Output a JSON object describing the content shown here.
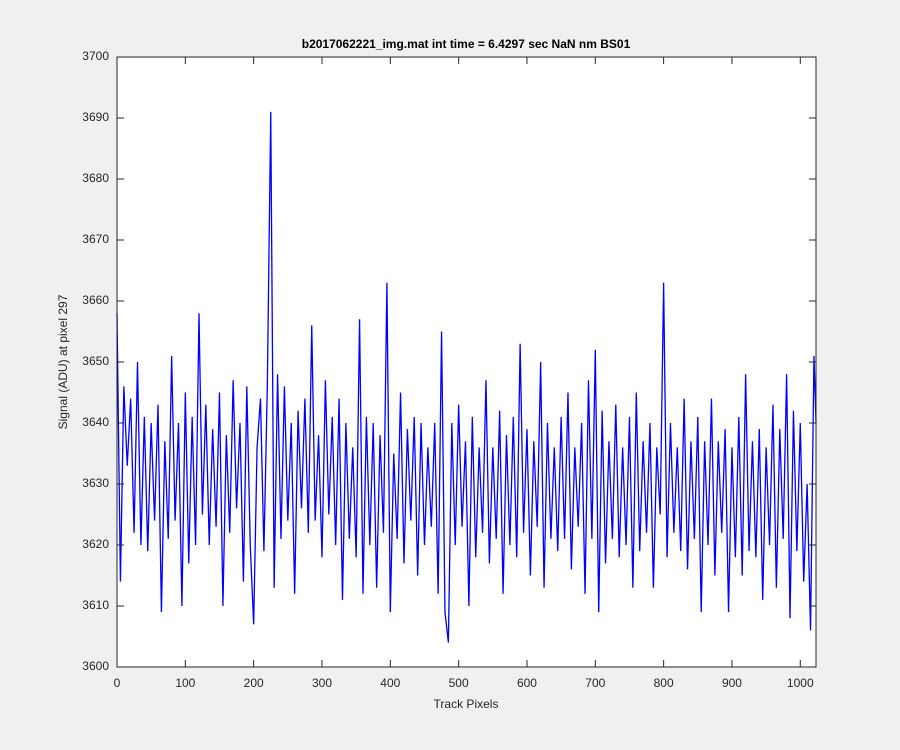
{
  "chart_data": {
    "type": "line",
    "title": "b2017062221_img.mat int time = 6.4297 sec  NaN nm BS01",
    "xlabel": "Track Pixels",
    "ylabel": "Signal (ADU) at pixel 297",
    "xlim": [
      0,
      1023
    ],
    "ylim": [
      3600,
      3700
    ],
    "xticks": [
      0,
      100,
      200,
      300,
      400,
      500,
      600,
      700,
      800,
      900,
      1000
    ],
    "yticks": [
      3600,
      3610,
      3620,
      3630,
      3640,
      3650,
      3660,
      3670,
      3680,
      3690,
      3700
    ],
    "grid": false,
    "series": [
      {
        "color": "#0000ff",
        "x": [
          0,
          5,
          10,
          15,
          20,
          25,
          30,
          35,
          40,
          45,
          50,
          55,
          60,
          65,
          70,
          75,
          80,
          85,
          90,
          95,
          100,
          105,
          110,
          115,
          120,
          125,
          130,
          135,
          140,
          145,
          150,
          155,
          160,
          165,
          170,
          175,
          180,
          185,
          190,
          195,
          200,
          205,
          210,
          215,
          220,
          225,
          230,
          235,
          240,
          245,
          250,
          255,
          260,
          265,
          270,
          275,
          280,
          285,
          290,
          295,
          300,
          305,
          310,
          315,
          320,
          325,
          330,
          335,
          340,
          345,
          350,
          355,
          360,
          365,
          370,
          375,
          380,
          385,
          390,
          395,
          400,
          405,
          410,
          415,
          420,
          425,
          430,
          435,
          440,
          445,
          450,
          455,
          460,
          465,
          470,
          475,
          480,
          485,
          490,
          495,
          500,
          505,
          510,
          515,
          520,
          525,
          530,
          535,
          540,
          545,
          550,
          555,
          560,
          565,
          570,
          575,
          580,
          585,
          590,
          595,
          600,
          605,
          610,
          615,
          620,
          625,
          630,
          635,
          640,
          645,
          650,
          655,
          660,
          665,
          670,
          675,
          680,
          685,
          690,
          695,
          700,
          705,
          710,
          715,
          720,
          725,
          730,
          735,
          740,
          745,
          750,
          755,
          760,
          765,
          770,
          775,
          780,
          785,
          790,
          795,
          800,
          805,
          810,
          815,
          820,
          825,
          830,
          835,
          840,
          845,
          850,
          855,
          860,
          865,
          870,
          875,
          880,
          885,
          890,
          895,
          900,
          905,
          910,
          915,
          920,
          925,
          930,
          935,
          940,
          945,
          950,
          955,
          960,
          965,
          970,
          975,
          980,
          985,
          990,
          995,
          1000,
          1005,
          1010,
          1015,
          1020,
          1023
        ],
        "values": [
          3658,
          3614,
          3646,
          3633,
          3644,
          3622,
          3650,
          3620,
          3641,
          3619,
          3640,
          3624,
          3643,
          3609,
          3637,
          3621,
          3651,
          3624,
          3640,
          3610,
          3645,
          3617,
          3641,
          3620,
          3658,
          3625,
          3643,
          3620,
          3639,
          3623,
          3645,
          3610,
          3638,
          3622,
          3647,
          3626,
          3640,
          3614,
          3646,
          3620,
          3607,
          3636,
          3644,
          3619,
          3646,
          3691,
          3613,
          3648,
          3621,
          3646,
          3624,
          3640,
          3612,
          3642,
          3626,
          3644,
          3622,
          3656,
          3624,
          3638,
          3618,
          3647,
          3625,
          3641,
          3620,
          3644,
          3611,
          3640,
          3621,
          3636,
          3618,
          3657,
          3612,
          3641,
          3620,
          3640,
          3613,
          3638,
          3622,
          3663,
          3609,
          3635,
          3621,
          3645,
          3617,
          3639,
          3624,
          3641,
          3615,
          3640,
          3620,
          3636,
          3623,
          3640,
          3612,
          3655,
          3609,
          3604,
          3640,
          3620,
          3643,
          3623,
          3637,
          3610,
          3641,
          3618,
          3636,
          3622,
          3647,
          3617,
          3636,
          3621,
          3642,
          3612,
          3638,
          3620,
          3641,
          3618,
          3653,
          3622,
          3639,
          3615,
          3637,
          3623,
          3650,
          3613,
          3640,
          3621,
          3636,
          3619,
          3641,
          3621,
          3645,
          3616,
          3636,
          3623,
          3640,
          3612,
          3647,
          3621,
          3652,
          3609,
          3642,
          3617,
          3637,
          3621,
          3643,
          3618,
          3636,
          3620,
          3641,
          3613,
          3645,
          3619,
          3637,
          3622,
          3640,
          3613,
          3636,
          3625,
          3663,
          3618,
          3640,
          3622,
          3636,
          3619,
          3644,
          3616,
          3637,
          3621,
          3641,
          3609,
          3637,
          3620,
          3644,
          3615,
          3637,
          3622,
          3639,
          3609,
          3636,
          3618,
          3641,
          3615,
          3648,
          3619,
          3637,
          3618,
          3639,
          3611,
          3636,
          3620,
          3643,
          3613,
          3639,
          3621,
          3648,
          3608,
          3642,
          3619,
          3640,
          3614,
          3630,
          3606,
          3651,
          3640
        ]
      }
    ]
  }
}
